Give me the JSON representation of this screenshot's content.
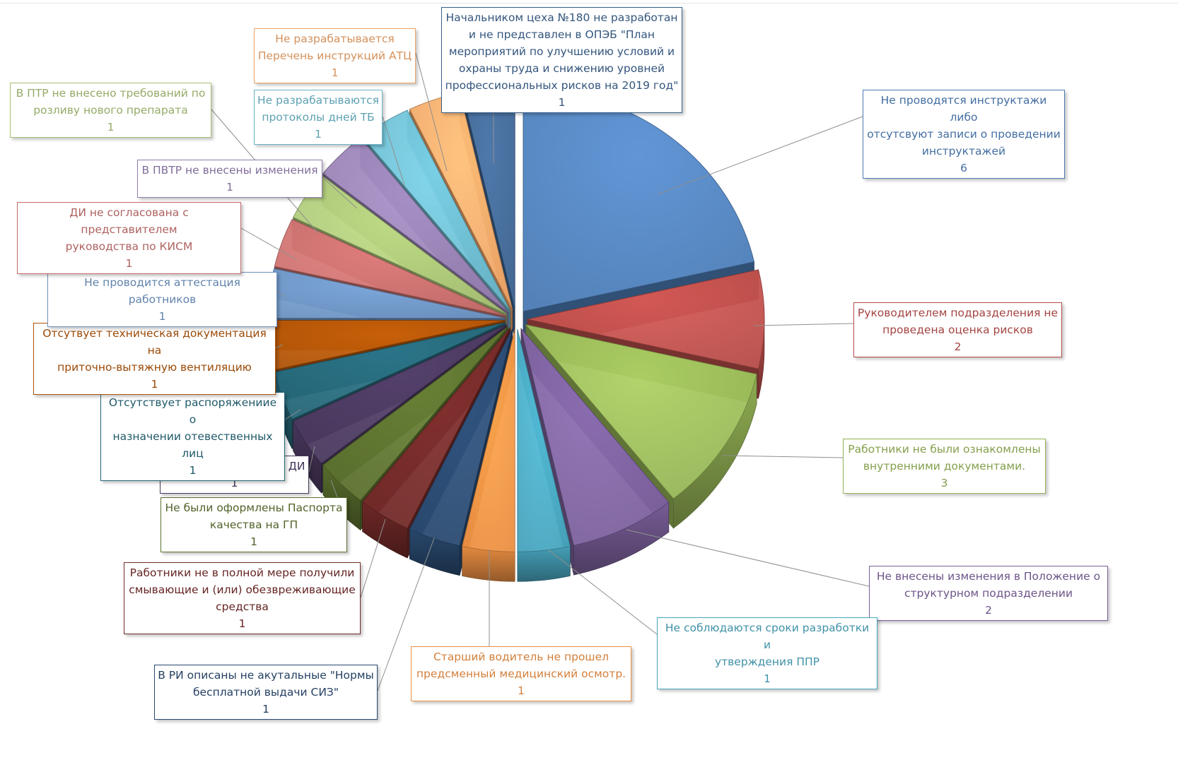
{
  "chart_data": {
    "type": "pie",
    "title": "",
    "slices": [
      {
        "label": "Не проводятся инструктажи либо\nотсутсвуют записи о проведении\nинструктажей",
        "value": 6,
        "color": "#4f81bd"
      },
      {
        "label": "Руководителем  подразделения  не\nпроведена  оценка рисков",
        "value": 2,
        "color": "#c0504d"
      },
      {
        "label": "Работники не были ознакомлены\nвнутренними документами.",
        "value": 3,
        "color": "#9bbb59"
      },
      {
        "label": "Не внесены изменения  в  Положение  о\nструктурном подразделении",
        "value": 2,
        "color": "#8064a2"
      },
      {
        "label": "Не соблюдаются сроки разработки и\nутверждения  ППР",
        "value": 1,
        "color": "#4bacc6"
      },
      {
        "label": "Старший водитель не прошел\nпредсменный  медицинский  осмотр.",
        "value": 1,
        "color": "#f79646"
      },
      {
        "label": "В РИ описаны не акутальные \"Нормы\nбесплатной выдачи СИЗ\"",
        "value": 1,
        "color": "#2c4d75"
      },
      {
        "label": "Работники не в полной мере получили\nсмывающие и (или) обезвреживающие\nсредства",
        "value": 1,
        "color": "#772c2a"
      },
      {
        "label": "Не были оформлены  Паспорта\nкачества на ГП",
        "value": 1,
        "color": "#5f7530"
      },
      {
        "label": "Не актуализированы ДИ",
        "value": 1,
        "color": "#4d3b62"
      },
      {
        "label": "Отсутствует распоряжениие о\nназначении отевественных  лиц",
        "value": 1,
        "color": "#276a7c"
      },
      {
        "label": "Отсутвует техническая документация  на\nприточно-вытяжную  вентиляцию",
        "value": 1,
        "color": "#b65708"
      },
      {
        "label": "Не проводится  аттестация работников",
        "value": 1,
        "color": "#729aca"
      },
      {
        "label": "ДИ не согласована с представителем\nруководства  по КИСМ",
        "value": 1,
        "color": "#cd7371"
      },
      {
        "label": "В  ПТР  не внесено требований  по\nрозливу нового препарата",
        "value": 1,
        "color": "#afc97a"
      },
      {
        "label": "В ПВТР не внесены изменения",
        "value": 1,
        "color": "#9983b5"
      },
      {
        "label": "Не разрабатываются\nпротоколы дней  ТБ",
        "value": 1,
        "color": "#6fbdd1"
      },
      {
        "label": "Не разрабатывается\nПеречень  инструкций АТЦ",
        "value": 1,
        "color": "#f9ab6b"
      },
      {
        "label": "Начальником цеха №180 не разработан\nи не представлен в ОПЭБ \"План\nмероприятий  по улучшению  условий  и\nохраны труда и снижению  уровней\nпрофессиональных  рисков на 2019 год\"",
        "value": 1,
        "color": "#3d6594"
      }
    ]
  }
}
